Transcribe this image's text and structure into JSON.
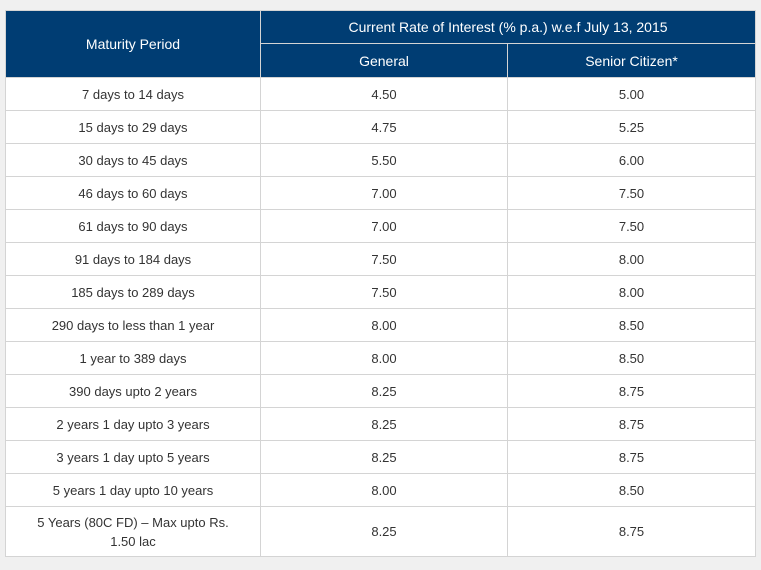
{
  "table": {
    "header_period": "Maturity Period",
    "header_rate": "Current Rate of Interest (% p.a.) w.e.f July 13, 2015",
    "header_general": "General",
    "header_senior": "Senior Citizen*",
    "rows": [
      {
        "period": "7 days to 14 days",
        "general": "4.50",
        "senior": "5.00"
      },
      {
        "period": "15 days to 29 days",
        "general": "4.75",
        "senior": "5.25"
      },
      {
        "period": "30 days to 45 days",
        "general": "5.50",
        "senior": "6.00"
      },
      {
        "period": "46 days to 60 days",
        "general": "7.00",
        "senior": "7.50"
      },
      {
        "period": "61 days to 90 days",
        "general": "7.00",
        "senior": "7.50"
      },
      {
        "period": "91 days to 184 days",
        "general": "7.50",
        "senior": "8.00"
      },
      {
        "period": "185 days to 289 days",
        "general": "7.50",
        "senior": "8.00"
      },
      {
        "period": "290 days to less than 1 year",
        "general": "8.00",
        "senior": "8.50"
      },
      {
        "period": "1 year to 389 days",
        "general": "8.00",
        "senior": "8.50"
      },
      {
        "period": "390 days upto 2 years",
        "general": "8.25",
        "senior": "8.75"
      },
      {
        "period": "2 years 1 day upto 3 years",
        "general": "8.25",
        "senior": "8.75"
      },
      {
        "period": "3 years 1 day upto 5 years",
        "general": "8.25",
        "senior": "8.75"
      },
      {
        "period": "5 years 1 day upto 10 years",
        "general": "8.00",
        "senior": "8.50"
      },
      {
        "period": "5 Years (80C FD) – Max upto Rs. 1.50 lac",
        "general": "8.25",
        "senior": "8.75"
      }
    ]
  },
  "colors": {
    "header_bg": "#003d73",
    "header_text": "#ffffff",
    "border": "#d4d4d4",
    "body_text": "#333333"
  }
}
